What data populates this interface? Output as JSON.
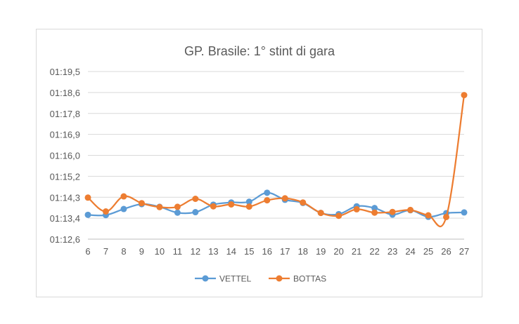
{
  "chart_data": {
    "type": "line",
    "title": "GP. Brasile: 1° stint di gara",
    "x": [
      "6",
      "7",
      "8",
      "9",
      "10",
      "11",
      "12",
      "13",
      "14",
      "15",
      "16",
      "17",
      "18",
      "19",
      "20",
      "21",
      "22",
      "23",
      "24",
      "25",
      "26",
      "27"
    ],
    "y_ticks": [
      "01:12,6",
      "01:13,4",
      "01:14,3",
      "01:15,2",
      "01:16,0",
      "01:16,9",
      "01:17,8",
      "01:18,6",
      "01:19,5"
    ],
    "ylim": [
      72.6,
      79.5
    ],
    "grid": true,
    "legend_position": "bottom",
    "series": [
      {
        "name": "VETTEL",
        "color": "#5b9bd5",
        "values": [
          73.6,
          73.59,
          73.84,
          74.04,
          73.93,
          73.69,
          73.71,
          74.02,
          74.11,
          74.14,
          74.51,
          74.22,
          74.09,
          73.68,
          73.63,
          73.95,
          73.88,
          73.61,
          73.79,
          73.52,
          73.67,
          73.7
        ]
      },
      {
        "name": "BOTTAS",
        "color": "#ed7d31",
        "values": [
          74.31,
          73.74,
          74.36,
          74.08,
          73.92,
          73.93,
          74.26,
          73.95,
          74.03,
          73.94,
          74.2,
          74.28,
          74.11,
          73.68,
          73.56,
          73.83,
          73.69,
          73.72,
          73.8,
          73.58,
          73.51,
          78.53
        ]
      }
    ]
  }
}
